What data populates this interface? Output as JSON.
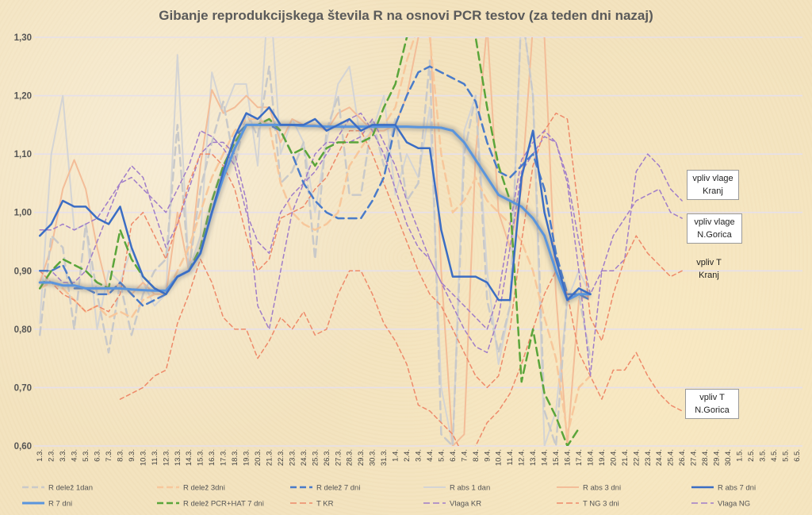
{
  "chart_data": {
    "type": "line",
    "title": "Gibanje reprodukcijskega števila R na osnovi PCR testov (za teden dni nazaj)",
    "ylim": [
      0.6,
      1.3
    ],
    "yticks": [
      "0,60",
      "0,70",
      "0,80",
      "0,90",
      "1,00",
      "1,10",
      "1,20",
      "1,30"
    ],
    "grid": true,
    "legend_position": "bottom",
    "categories": [
      "1.3.",
      "2.3.",
      "3.3.",
      "4.3.",
      "5.3.",
      "6.3.",
      "7.3.",
      "8.3.",
      "9.3.",
      "10.3.",
      "11.3.",
      "12.3.",
      "13.3.",
      "14.3.",
      "15.3.",
      "16.3.",
      "17.3.",
      "18.3.",
      "19.3.",
      "20.3.",
      "21.3.",
      "22.3.",
      "23.3.",
      "24.3.",
      "25.3.",
      "26.3.",
      "27.3.",
      "28.3.",
      "29.3.",
      "30.3.",
      "31.3.",
      "1.4.",
      "2.4.",
      "3.4.",
      "4.4.",
      "5.4.",
      "6.4.",
      "7.4.",
      "8.4.",
      "9.4.",
      "10.4.",
      "11.4.",
      "12.4.",
      "13.4.",
      "14.4.",
      "15.4.",
      "16.4.",
      "17.4.",
      "18.4.",
      "19.4.",
      "20.4.",
      "21.4.",
      "22.4.",
      "23.4.",
      "24.4.",
      "25.4.",
      "26.4.",
      "27.4.",
      "28.4.",
      "29.4.",
      "30.4.",
      "1.5.",
      "2.5.",
      "3.5.",
      "4.5.",
      "5.5.",
      "6.5."
    ],
    "series": [
      {
        "name": "R delež 1dan",
        "color": "#c9c9c9",
        "width": 2.5,
        "dash": "10,6",
        "values": [
          0.79,
          0.96,
          0.94,
          0.8,
          0.98,
          0.86,
          0.76,
          0.88,
          0.79,
          0.86,
          0.9,
          0.92,
          1.15,
          0.9,
          1.04,
          1.12,
          1.19,
          1.08,
          1.17,
          1.13,
          1.25,
          1.05,
          1.07,
          1.12,
          0.92,
          1.14,
          1.2,
          1.03,
          1.03,
          1.16,
          1.08,
          1.16,
          1.02,
          1.05,
          1.26,
          0.62,
          0.6,
          1.1,
          1.2,
          0.85,
          0.76,
          0.84,
          1.35,
          1.2,
          0.66,
          0.6,
          0.86,
          0.86,
          0.75,
          null,
          null,
          null,
          null,
          null,
          null,
          null,
          null,
          null,
          null,
          null,
          null,
          null,
          null,
          null,
          null,
          null,
          null
        ]
      },
      {
        "name": "R delež 3dni",
        "color": "#f7c79b",
        "width": 2.5,
        "dash": "10,6",
        "values": [
          0.87,
          0.88,
          0.87,
          0.85,
          0.83,
          0.84,
          0.82,
          0.83,
          0.82,
          0.85,
          0.86,
          0.86,
          0.9,
          0.94,
          1.0,
          1.06,
          1.1,
          1.14,
          1.16,
          1.16,
          1.15,
          1.05,
          1.0,
          0.98,
          0.97,
          0.98,
          1.0,
          1.08,
          1.11,
          1.14,
          1.15,
          1.18,
          1.26,
          1.32,
          1.3,
          1.1,
          1.0,
          1.02,
          1.06,
          1.02,
          1.0,
          0.98,
          0.95,
          0.9,
          0.82,
          0.75,
          0.62,
          0.7,
          0.72,
          null,
          null,
          null,
          null,
          null,
          null,
          null,
          null,
          null,
          null,
          null,
          null,
          null,
          null,
          null,
          null,
          null,
          null
        ]
      },
      {
        "name": "R delež 7 dni",
        "color": "#4a7bc9",
        "width": 2.5,
        "dash": "10,6",
        "values": [
          0.9,
          0.9,
          0.91,
          0.87,
          0.87,
          0.86,
          0.86,
          0.88,
          0.86,
          0.84,
          0.85,
          0.86,
          0.89,
          0.9,
          0.93,
          1.0,
          1.07,
          1.13,
          1.15,
          1.15,
          1.15,
          1.14,
          1.1,
          1.05,
          1.02,
          1.0,
          0.99,
          0.99,
          0.99,
          1.02,
          1.06,
          1.15,
          1.2,
          1.24,
          1.25,
          1.24,
          1.23,
          1.22,
          1.19,
          1.12,
          1.07,
          1.06,
          1.08,
          1.1,
          1.04,
          0.93,
          0.86,
          0.86,
          0.85,
          null,
          null,
          null,
          null,
          null,
          null,
          null,
          null,
          null,
          null,
          null,
          null,
          null,
          null,
          null,
          null,
          null,
          null
        ]
      },
      {
        "name": "R abs 1 dan",
        "color": "#d4d4d4",
        "width": 2,
        "dash": "",
        "values": [
          0.81,
          1.1,
          1.2,
          0.97,
          0.98,
          0.8,
          0.9,
          0.88,
          0.94,
          0.88,
          0.84,
          0.86,
          1.27,
          0.9,
          0.96,
          1.24,
          1.17,
          1.22,
          1.22,
          1.08,
          1.4,
          1.1,
          1.16,
          1.12,
          1.0,
          1.12,
          1.22,
          1.25,
          1.12,
          1.14,
          1.2,
          1.03,
          1.1,
          1.06,
          1.18,
          0.7,
          0.6,
          1.14,
          1.2,
          0.9,
          0.74,
          0.84,
          1.35,
          1.2,
          0.6,
          0.66,
          0.85,
          0.9,
          0.86,
          null,
          null,
          null,
          null,
          null,
          null,
          null,
          null,
          null,
          null,
          null,
          null,
          null,
          null,
          null,
          null,
          null,
          null
        ]
      },
      {
        "name": "R abs 3 dni",
        "color": "#f3bd98",
        "width": 2,
        "dash": "",
        "values": [
          0.88,
          0.94,
          1.04,
          1.09,
          1.04,
          0.94,
          0.86,
          0.88,
          0.86,
          0.88,
          0.86,
          0.86,
          1.0,
          0.9,
          1.08,
          1.21,
          1.17,
          1.18,
          1.2,
          1.18,
          1.18,
          1.12,
          1.16,
          1.15,
          1.15,
          1.14,
          1.17,
          1.18,
          1.16,
          1.14,
          1.14,
          1.15,
          1.2,
          1.3,
          1.32,
          0.9,
          0.6,
          0.62,
          1.1,
          1.32,
          1.0,
          0.94,
          1.04,
          1.32,
          1.3,
          0.86,
          0.6,
          0.85,
          0.86,
          null,
          null,
          null,
          null,
          null,
          null,
          null,
          null,
          null,
          null,
          null,
          null,
          null,
          null,
          null,
          null,
          null,
          null
        ]
      },
      {
        "name": "R abs 7 dni",
        "color": "#3b6dc4",
        "width": 2.5,
        "dash": "",
        "values": [
          0.96,
          0.98,
          1.02,
          1.01,
          1.01,
          0.99,
          0.98,
          1.01,
          0.94,
          0.89,
          0.87,
          0.86,
          0.89,
          0.9,
          0.93,
          1.0,
          1.07,
          1.13,
          1.17,
          1.16,
          1.18,
          1.15,
          1.15,
          1.15,
          1.16,
          1.14,
          1.15,
          1.16,
          1.14,
          1.15,
          1.15,
          1.15,
          1.12,
          1.11,
          1.11,
          0.97,
          0.89,
          0.89,
          0.89,
          0.88,
          0.85,
          0.85,
          1.06,
          1.14,
          1.0,
          0.92,
          0.85,
          0.87,
          0.86,
          null,
          null,
          null,
          null,
          null,
          null,
          null,
          null,
          null,
          null,
          null,
          null,
          null,
          null,
          null,
          null,
          null,
          null
        ]
      },
      {
        "name": "R 7 dni",
        "color": "#5a95dd",
        "width": 3,
        "dash": "",
        "shadow": true,
        "values": [
          0.88,
          0.88,
          0.875,
          0.875,
          0.87,
          0.87,
          0.87,
          0.87,
          0.868,
          0.867,
          0.866,
          0.866,
          0.89,
          0.9,
          0.93,
          1.0,
          1.06,
          1.11,
          1.15,
          1.15,
          1.15,
          1.15,
          1.15,
          1.148,
          1.148,
          1.147,
          1.147,
          1.147,
          1.147,
          1.147,
          1.147,
          1.147,
          1.147,
          1.146,
          1.146,
          1.145,
          1.14,
          1.12,
          1.09,
          1.06,
          1.03,
          1.02,
          1.01,
          0.99,
          0.96,
          0.9,
          0.85,
          0.86,
          0.86,
          null,
          null,
          null,
          null,
          null,
          null,
          null,
          null,
          null,
          null,
          null,
          null,
          null,
          null,
          null,
          null,
          null,
          null
        ]
      },
      {
        "name": "R delež PCR+HAT 7 dni",
        "color": "#5aa53a",
        "width": 2.5,
        "dash": "10,6",
        "values": [
          0.87,
          0.9,
          0.92,
          0.91,
          0.9,
          0.88,
          0.87,
          0.97,
          0.92,
          0.89,
          0.87,
          0.86,
          0.89,
          0.9,
          0.94,
          1.02,
          1.08,
          1.12,
          1.15,
          1.15,
          1.16,
          1.14,
          1.1,
          1.11,
          1.08,
          1.11,
          1.12,
          1.12,
          1.12,
          1.13,
          1.18,
          1.22,
          1.3,
          1.32,
          1.32,
          null,
          null,
          1.6,
          1.3,
          1.18,
          1.08,
          1.02,
          0.71,
          0.8,
          0.69,
          0.65,
          0.6,
          0.63,
          null,
          null,
          null,
          null,
          null,
          null,
          null,
          null,
          null,
          null,
          null,
          null,
          null,
          null,
          null,
          null,
          null,
          null,
          null
        ]
      },
      {
        "name": "T KR",
        "color": "#ee8a6a",
        "width": 1.5,
        "dash": "5,4",
        "values": [
          null,
          null,
          null,
          null,
          null,
          null,
          null,
          0.68,
          0.69,
          0.7,
          0.72,
          0.73,
          0.81,
          0.86,
          0.92,
          0.88,
          0.82,
          0.8,
          0.8,
          0.75,
          0.78,
          0.82,
          0.8,
          0.83,
          0.79,
          0.8,
          0.86,
          0.9,
          0.9,
          0.86,
          0.81,
          0.78,
          0.74,
          0.67,
          0.66,
          0.64,
          0.62,
          0.58,
          0.6,
          0.64,
          0.66,
          0.69,
          0.74,
          0.8,
          0.86,
          0.9,
          0.86,
          0.76,
          0.72,
          0.68,
          0.73,
          0.73,
          0.76,
          0.72,
          0.69,
          0.67,
          0.66,
          null,
          null,
          null,
          null,
          null,
          null,
          null,
          null,
          null,
          null
        ]
      },
      {
        "name": "Vlaga KR",
        "color": "#a07dc9",
        "width": 1.5,
        "dash": "5,4",
        "values": [
          0.9,
          0.9,
          0.88,
          0.88,
          0.9,
          0.95,
          1.0,
          1.05,
          1.08,
          1.06,
          1.0,
          0.94,
          0.98,
          1.04,
          1.1,
          1.12,
          1.12,
          1.1,
          1.02,
          0.84,
          0.8,
          0.9,
          1.0,
          1.05,
          1.1,
          1.12,
          1.12,
          1.12,
          1.13,
          1.16,
          1.12,
          1.08,
          1.02,
          0.97,
          0.92,
          0.88,
          0.84,
          0.8,
          0.77,
          0.76,
          0.82,
          0.94,
          1.07,
          1.1,
          1.13,
          1.12,
          1.05,
          0.9,
          0.72,
          0.9,
          0.9,
          0.92,
          1.07,
          1.1,
          1.08,
          1.04,
          1.02,
          null,
          null,
          null,
          null,
          null,
          null,
          null,
          null,
          null,
          null
        ]
      },
      {
        "name": "T NG 3 dni",
        "color": "#ee8a6a",
        "width": 1.5,
        "dash": "5,4",
        "values": [
          0.9,
          0.88,
          0.86,
          0.85,
          0.83,
          0.84,
          0.83,
          0.86,
          0.98,
          1.0,
          0.96,
          0.92,
          0.98,
          1.05,
          1.1,
          1.1,
          1.08,
          1.04,
          0.96,
          0.9,
          0.92,
          0.99,
          1.0,
          1.01,
          1.04,
          1.06,
          1.1,
          1.14,
          1.14,
          1.1,
          1.05,
          1.0,
          0.95,
          0.9,
          0.86,
          0.84,
          0.8,
          0.76,
          0.72,
          0.7,
          0.72,
          0.8,
          0.95,
          1.08,
          1.14,
          1.17,
          1.16,
          1.0,
          0.82,
          0.78,
          0.86,
          0.92,
          0.96,
          0.93,
          0.91,
          0.89,
          0.9,
          null,
          null,
          null,
          null,
          null,
          null,
          null,
          null,
          null,
          null
        ]
      },
      {
        "name": "Vlaga NG",
        "color": "#a07dc9",
        "width": 1.5,
        "dash": "5,4",
        "values": [
          0.97,
          0.97,
          0.98,
          0.97,
          0.98,
          0.99,
          1.02,
          1.05,
          1.06,
          1.04,
          1.02,
          1.0,
          1.04,
          1.08,
          1.14,
          1.13,
          1.11,
          1.08,
          1.0,
          0.95,
          0.93,
          1.0,
          1.03,
          1.05,
          1.07,
          1.1,
          1.13,
          1.16,
          1.17,
          1.14,
          1.1,
          1.04,
          0.98,
          0.94,
          0.92,
          0.88,
          0.86,
          0.84,
          0.82,
          0.8,
          0.86,
          0.98,
          1.09,
          1.12,
          1.14,
          1.12,
          1.06,
          0.95,
          0.86,
          0.9,
          0.96,
          0.99,
          1.02,
          1.03,
          1.04,
          1.0,
          0.99,
          null,
          null,
          null,
          null,
          null,
          null,
          null,
          null,
          null,
          null
        ]
      }
    ],
    "annotations": [
      {
        "lines": [
          "vpliv vlage",
          "Kranj"
        ]
      },
      {
        "lines": [
          "vpliv vlage",
          "N.Gorica"
        ]
      },
      {
        "lines": [
          "vpliv T",
          "Kranj"
        ]
      },
      {
        "lines": [
          "vpliv T",
          "N.Gorica"
        ]
      }
    ]
  }
}
